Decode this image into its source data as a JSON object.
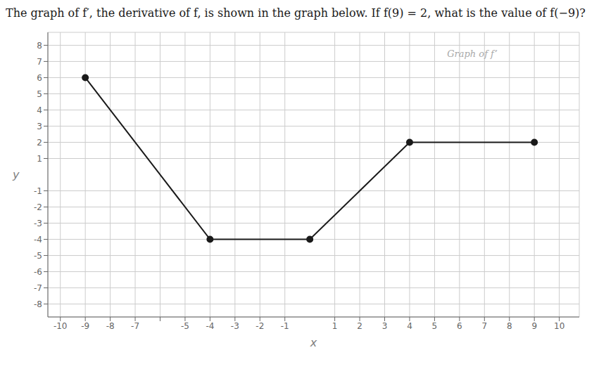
{
  "chart_data": {
    "type": "line",
    "title": "The graph of f′, the derivative of f, is shown in the graph below. If f(9) = 2, what is the value of f(−9)?",
    "x": [
      -9,
      -4,
      0,
      4,
      9
    ],
    "values": [
      6,
      -4,
      -4,
      2,
      2
    ],
    "color": "#1a1a1a",
    "marker": "circle",
    "xlabel": "x",
    "ylabel": "y",
    "xlim": [
      -10.5,
      10.8
    ],
    "ylim": [
      -8.8,
      8.8
    ],
    "xticks": [
      -10,
      -9,
      -8,
      -7,
      {
        "value": -6,
        "label": null
      },
      -5,
      -4,
      -3,
      -2,
      -1,
      1,
      2,
      3,
      4,
      5,
      6,
      7,
      8,
      9,
      10
    ],
    "yticks": [
      -8,
      -7,
      -6,
      -5,
      -4,
      -3,
      -2,
      -1,
      1,
      2,
      3,
      4,
      5,
      6,
      7,
      8
    ],
    "grid": true,
    "annotations": [
      {
        "text": "Graph of f’",
        "x": 5.5,
        "y": 7.8,
        "color": "#aaaaaa"
      }
    ]
  }
}
